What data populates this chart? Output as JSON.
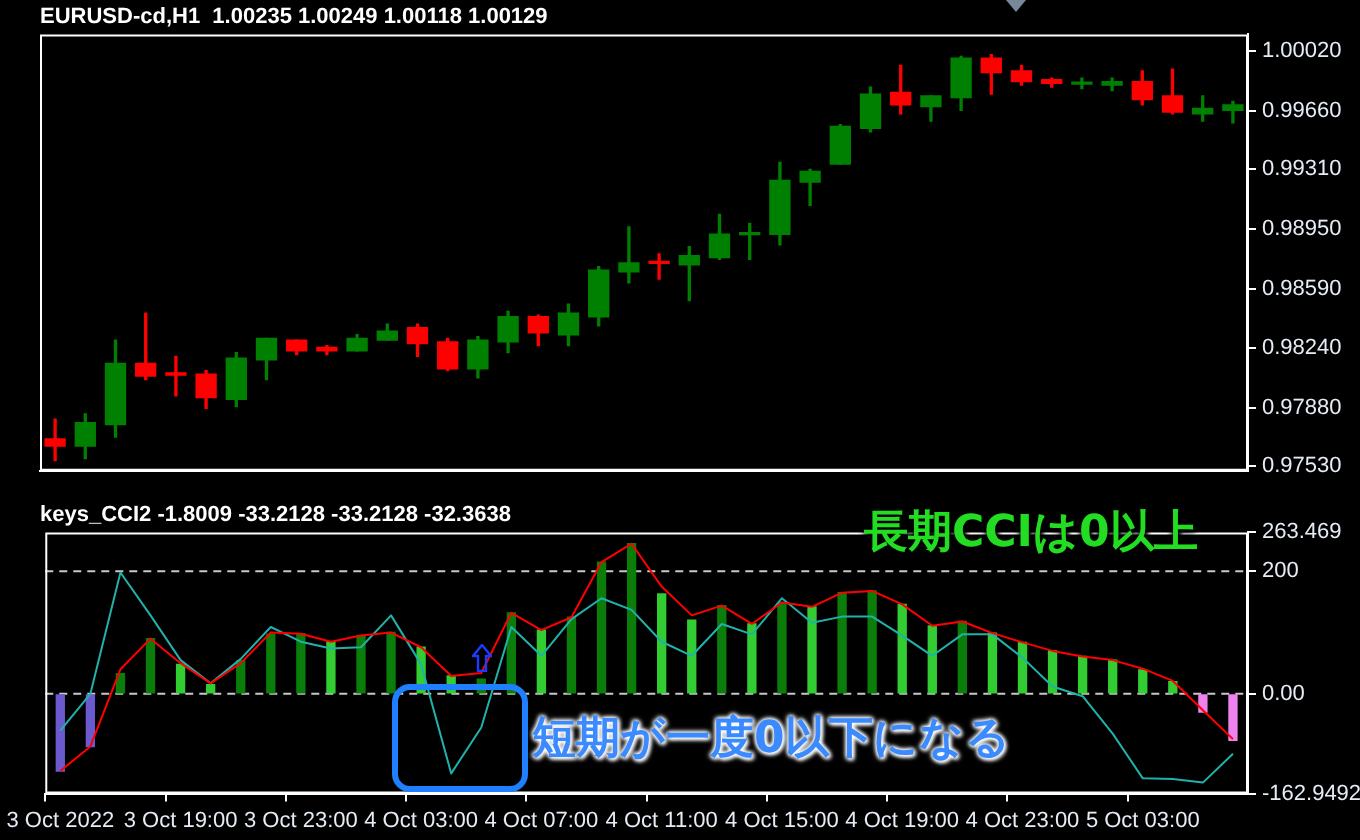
{
  "chart_data": [
    {
      "type": "candlestick",
      "title": "EURUSD-cd,H1  1.00235 1.00249 1.00118 1.00129",
      "ohlc": [
        [
          0.97692,
          0.9781,
          0.97562,
          0.97648
        ],
        [
          0.97648,
          0.97842,
          0.97573,
          0.97789
        ],
        [
          0.97778,
          0.98284,
          0.97702,
          0.98144
        ],
        [
          0.98144,
          0.98446,
          0.98047,
          0.98069
        ],
        [
          0.9808,
          0.98187,
          0.9795,
          0.98075
        ],
        [
          0.9808,
          0.98101,
          0.97875,
          0.97939
        ],
        [
          0.97929,
          0.98209,
          0.97886,
          0.98177
        ],
        [
          0.98166,
          0.98295,
          0.98047,
          0.98295
        ],
        [
          0.98284,
          0.98284,
          0.98198,
          0.9822
        ],
        [
          0.98241,
          0.98252,
          0.98198,
          0.9822
        ],
        [
          0.9822,
          0.98317,
          0.9822,
          0.98295
        ],
        [
          0.98284,
          0.98381,
          0.98284,
          0.98338
        ],
        [
          0.9836,
          0.98381,
          0.98187,
          0.98263
        ],
        [
          0.98274,
          0.98295,
          0.98101,
          0.98112
        ],
        [
          0.98112,
          0.98306,
          0.98058,
          0.98284
        ],
        [
          0.98274,
          0.98457,
          0.98209,
          0.98425
        ],
        [
          0.98425,
          0.98435,
          0.98252,
          0.98328
        ],
        [
          0.98317,
          0.985,
          0.98252,
          0.98446
        ],
        [
          0.98425,
          0.98726,
          0.98371,
          0.98705
        ],
        [
          0.98694,
          0.98964,
          0.98629,
          0.98748
        ],
        [
          0.98748,
          0.98802,
          0.98651,
          0.98745
        ],
        [
          0.98737,
          0.98845,
          0.98522,
          0.98791
        ],
        [
          0.9878,
          0.99039,
          0.9877,
          0.9892
        ],
        [
          0.98918,
          0.98985,
          0.9877,
          0.98922
        ],
        [
          0.9892,
          0.99352,
          0.98856,
          0.99244
        ],
        [
          0.99233,
          0.99309,
          0.99093,
          0.99298
        ],
        [
          0.99341,
          0.99578,
          0.99341,
          0.99567
        ],
        [
          0.99556,
          0.99804,
          0.99535,
          0.99761
        ],
        [
          0.99772,
          0.99934,
          0.99643,
          0.99697
        ],
        [
          0.99686,
          0.9975,
          0.996,
          0.9975
        ],
        [
          0.9974,
          0.99988,
          0.99664,
          0.99977
        ],
        [
          0.99977,
          0.99998,
          0.99761,
          0.99891
        ],
        [
          0.99901,
          0.99934,
          0.99815,
          0.99837
        ],
        [
          0.99848,
          0.99858,
          0.99804,
          0.99826
        ],
        [
          0.99822,
          0.99858,
          0.99794,
          0.99826
        ],
        [
          0.99815,
          0.99858,
          0.99783,
          0.99837
        ],
        [
          0.99837,
          0.99901,
          0.99697,
          0.99729
        ],
        [
          0.9975,
          0.99912,
          0.99643,
          0.99653
        ],
        [
          0.99643,
          0.9975,
          0.996,
          0.99675
        ],
        [
          0.99664,
          0.99718,
          0.99589,
          0.99697
        ]
      ],
      "colors": [
        "#ff0000",
        "#008000",
        "#008000",
        "#ff0000",
        "#ff0000",
        "#ff0000",
        "#008000",
        "#008000",
        "#ff0000",
        "#ff0000",
        "#008000",
        "#008000",
        "#ff0000",
        "#ff0000",
        "#008000",
        "#008000",
        "#ff0000",
        "#008000",
        "#008000",
        "#008000",
        "#ff0000",
        "#008000",
        "#008000",
        "#008000",
        "#008000",
        "#008000",
        "#008000",
        "#008000",
        "#ff0000",
        "#008000",
        "#008000",
        "#ff0000",
        "#ff0000",
        "#ff0000",
        "#008000",
        "#008000",
        "#ff0000",
        "#ff0000",
        "#008000",
        "#008000"
      ],
      "ylim": [
        0.975,
        1.0012
      ],
      "yticks": [
        {
          "value": 0.9753,
          "label": "0.97530"
        },
        {
          "value": 0.9788,
          "label": "0.97880"
        },
        {
          "value": 0.9824,
          "label": "0.98240"
        },
        {
          "value": 0.9859,
          "label": "0.98590"
        },
        {
          "value": 0.9895,
          "label": "0.98950"
        },
        {
          "value": 0.9931,
          "label": "0.99310"
        },
        {
          "value": 0.9966,
          "label": "0.99660"
        },
        {
          "value": 1.0002,
          "label": "1.00020"
        }
      ],
      "tick_labels": "y"
    },
    {
      "type": "bar",
      "title": "keys_CCI2 -1.8009 -33.2128 -33.2128 -32.3638",
      "categories": [
        "3 Oct 2022",
        null,
        null,
        null,
        "3 Oct 19:00",
        null,
        null,
        null,
        "3 Oct 23:00",
        null,
        null,
        null,
        "4 Oct 03:00",
        null,
        null,
        null,
        "4 Oct 07:00",
        null,
        null,
        null,
        "4 Oct 11:00",
        null,
        null,
        null,
        "4 Oct 15:00",
        null,
        null,
        null,
        "4 Oct 19:00",
        null,
        null,
        null,
        "4 Oct 23:00",
        null,
        null,
        null,
        "5 Oct 03:00",
        null,
        null,
        null
      ],
      "series": [
        {
          "type": "bar",
          "colors": [
            "#6a5acd",
            "#6a5acd",
            "#0a7d0a",
            "#0a7d0a",
            "#32cd32",
            "#32cd32",
            "#0a7d0a",
            "#0a7d0a",
            "#0a7d0a",
            "#32cd32",
            "#0a7d0a",
            "#0a7d0a",
            "#32cd32",
            "#32cd32",
            "#0a7d0a",
            "#0a7d0a",
            "#32cd32",
            "#0a7d0a",
            "#0a7d0a",
            "#0a7d0a",
            "#32cd32",
            "#32cd32",
            "#0a7d0a",
            "#32cd32",
            "#0a7d0a",
            "#32cd32",
            "#0a7d0a",
            "#0a7d0a",
            "#32cd32",
            "#32cd32",
            "#0a7d0a",
            "#32cd32",
            "#32cd32",
            "#32cd32",
            "#32cd32",
            "#32cd32",
            "#32cd32",
            "#32cd32",
            "#ee82ee",
            "#ee82ee"
          ],
          "values": [
            -126,
            -86,
            33,
            90,
            48,
            15,
            54,
            97,
            98,
            85,
            95,
            100,
            76,
            29,
            24,
            132,
            104,
            125,
            215,
            245,
            163,
            120,
            144,
            114,
            149,
            142,
            165,
            168,
            146,
            111,
            118,
            99,
            84,
            70,
            61,
            55,
            39,
            20,
            -30,
            -76
          ]
        },
        {
          "type": "line",
          "color": "#ff0000",
          "values": [
            -126,
            -86,
            40,
            90,
            50,
            17,
            50,
            100,
            98,
            85,
            95,
            100,
            76,
            29,
            34,
            132,
            104,
            125,
            215,
            245,
            175,
            128,
            144,
            114,
            149,
            142,
            165,
            168,
            146,
            111,
            118,
            99,
            84,
            70,
            61,
            55,
            41,
            21,
            -27,
            -74
          ]
        },
        {
          "type": "line",
          "color": "#20b2aa",
          "values": [
            -60,
            0,
            198,
            128,
            55,
            17,
            57,
            109,
            85,
            74,
            76,
            128,
            48,
            -130,
            -55,
            109,
            62,
            122,
            156,
            137,
            85,
            62,
            114,
            97,
            156,
            116,
            126,
            126,
            95,
            62,
            97,
            97,
            59,
            12,
            -4,
            -65,
            -138,
            -139,
            -145,
            -98
          ]
        }
      ],
      "ylim": [
        -162.9492,
        263.469
      ],
      "yticks": [
        -162.9492,
        {
          "value": 0,
          "label": "0.00"
        },
        200,
        263.469
      ],
      "ref_lines": [
        {
          "axis": "y",
          "value": 200,
          "color": "#c8c8c8",
          "line_style": "dashed"
        },
        {
          "axis": "y",
          "value": 0,
          "color": "#c8c8c8",
          "line_style": "dashed"
        }
      ],
      "annotations": [
        "長期CCIは0以上",
        "短期が一度0以下になる"
      ]
    }
  ]
}
